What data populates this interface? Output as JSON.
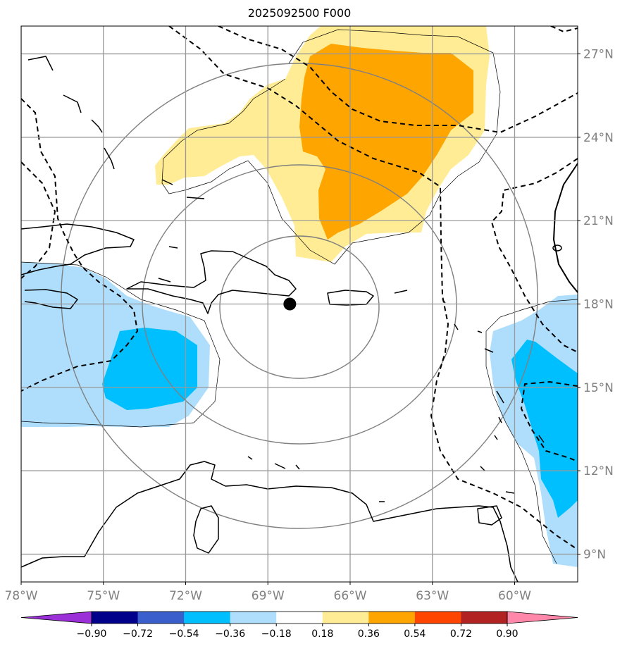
{
  "title": "2025092500 F000",
  "map": {
    "lon_range": [
      -78,
      -57.7
    ],
    "lat_range": [
      8,
      28
    ],
    "center_marker": {
      "lon": -68.2,
      "lat": 18.0
    },
    "x_ticks": [
      {
        "value": -78,
        "label": "78°W"
      },
      {
        "value": -75,
        "label": "75°W"
      },
      {
        "value": -72,
        "label": "72°W"
      },
      {
        "value": -69,
        "label": "69°W"
      },
      {
        "value": -66,
        "label": "66°W"
      },
      {
        "value": -63,
        "label": "63°W"
      },
      {
        "value": -60,
        "label": "60°W"
      }
    ],
    "y_ticks": [
      {
        "value": 27,
        "label": "27°N"
      },
      {
        "value": 24,
        "label": "24°N"
      },
      {
        "value": 21,
        "label": "21°N"
      },
      {
        "value": 18,
        "label": "18°N"
      },
      {
        "value": 15,
        "label": "15°N"
      },
      {
        "value": 12,
        "label": "12°N"
      },
      {
        "value": 9,
        "label": "9°N"
      }
    ],
    "range_rings_deg": [
      3,
      6,
      9
    ],
    "colors": {
      "ocean": "#ffffff",
      "grid": "#999999",
      "tick_label": "#808080",
      "light_yellow": "#ffec94",
      "orange": "#ffa500",
      "light_blue": "#aedefc",
      "blue": "#00bfff"
    }
  },
  "colorbar": {
    "bounds": [
      -0.9,
      -0.72,
      -0.54,
      -0.36,
      -0.18,
      0.18,
      0.36,
      0.54,
      0.72,
      0.9
    ],
    "labels": [
      "−0.90",
      "−0.72",
      "−0.54",
      "−0.36",
      "−0.18",
      "0.18",
      "0.36",
      "0.54",
      "0.72",
      "0.90"
    ],
    "colors": [
      "#9b30d9",
      "#00008b",
      "#3a5fcd",
      "#00bfff",
      "#aedefc",
      "#ffffff",
      "#ffec94",
      "#ffa500",
      "#ff4500",
      "#b22222",
      "#ff88aa"
    ]
  }
}
